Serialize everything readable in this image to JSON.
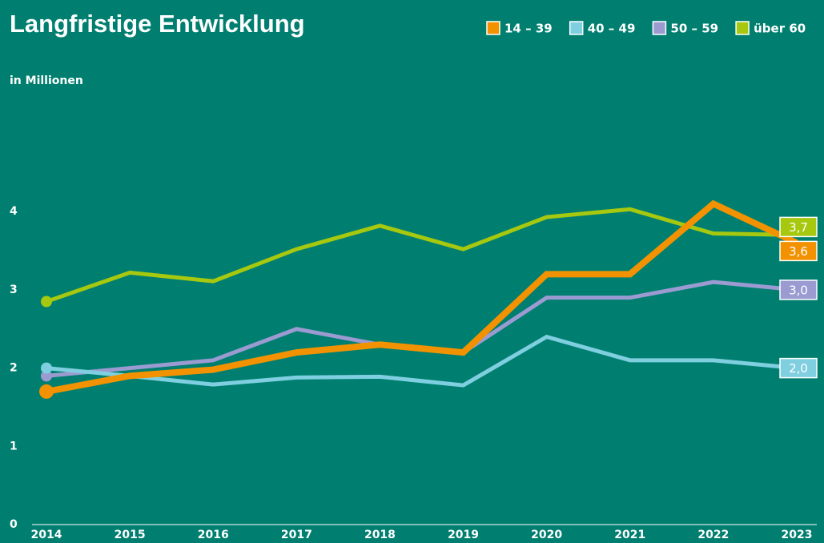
{
  "chart_data": {
    "type": "line",
    "title": "Langfristige Entwicklung",
    "subtitle": "in Millionen",
    "categories": [
      "2014",
      "2015",
      "2016",
      "2017",
      "2018",
      "2019",
      "2020",
      "2021",
      "2022",
      "2023"
    ],
    "series": [
      {
        "name": "14 – 39",
        "color": "#f39200",
        "values": [
          1.7,
          1.9,
          1.98,
          2.2,
          2.3,
          2.2,
          3.2,
          3.2,
          4.1,
          3.6
        ],
        "value_labels": [
          null,
          null,
          null,
          null,
          null,
          null,
          null,
          null,
          null,
          "3,6"
        ]
      },
      {
        "name": "40 – 49",
        "color": "#7fcfe0",
        "values": [
          2.0,
          1.9,
          1.79,
          1.88,
          1.89,
          1.78,
          2.4,
          2.1,
          2.1,
          2.0
        ],
        "value_labels": [
          null,
          null,
          null,
          null,
          null,
          null,
          null,
          null,
          null,
          "2,0"
        ]
      },
      {
        "name": "50 – 59",
        "color": "#9b9bd2",
        "values": [
          1.9,
          2.0,
          2.1,
          2.5,
          2.3,
          2.2,
          2.9,
          2.9,
          3.1,
          3.0
        ],
        "value_labels": [
          null,
          null,
          null,
          null,
          null,
          null,
          null,
          null,
          null,
          "3,0"
        ]
      },
      {
        "name": "über 60",
        "color": "#a6c80f",
        "values": [
          2.85,
          3.22,
          3.11,
          3.52,
          3.82,
          3.52,
          3.93,
          4.03,
          3.72,
          3.7
        ],
        "value_labels": [
          null,
          null,
          null,
          null,
          null,
          null,
          null,
          null,
          null,
          "3,7"
        ]
      }
    ],
    "ylim": [
      0,
      4.6
    ],
    "yticks": [
      0,
      1,
      2,
      3,
      4
    ],
    "grid": false
  }
}
